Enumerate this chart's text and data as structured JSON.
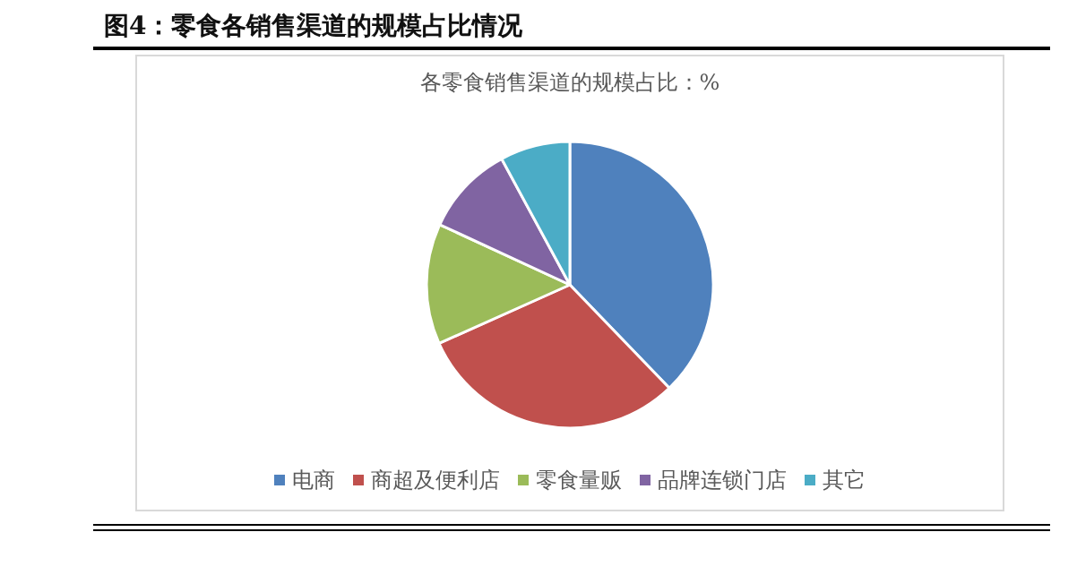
{
  "chart_data": {
    "type": "pie",
    "title": "图4：零食各销售渠道的规模占比情况",
    "subtitle": "各零食销售渠道的规模占比：%",
    "categories": [
      "电商",
      "商超及便利店",
      "零食量贩",
      "品牌连锁门店",
      "其它"
    ],
    "values": [
      37.8,
      30.5,
      13.6,
      10.2,
      7.9
    ],
    "colors": [
      "#4f81bd",
      "#c0504d",
      "#9bbb59",
      "#8064a2",
      "#4bacc6"
    ],
    "legend": "bottom"
  }
}
